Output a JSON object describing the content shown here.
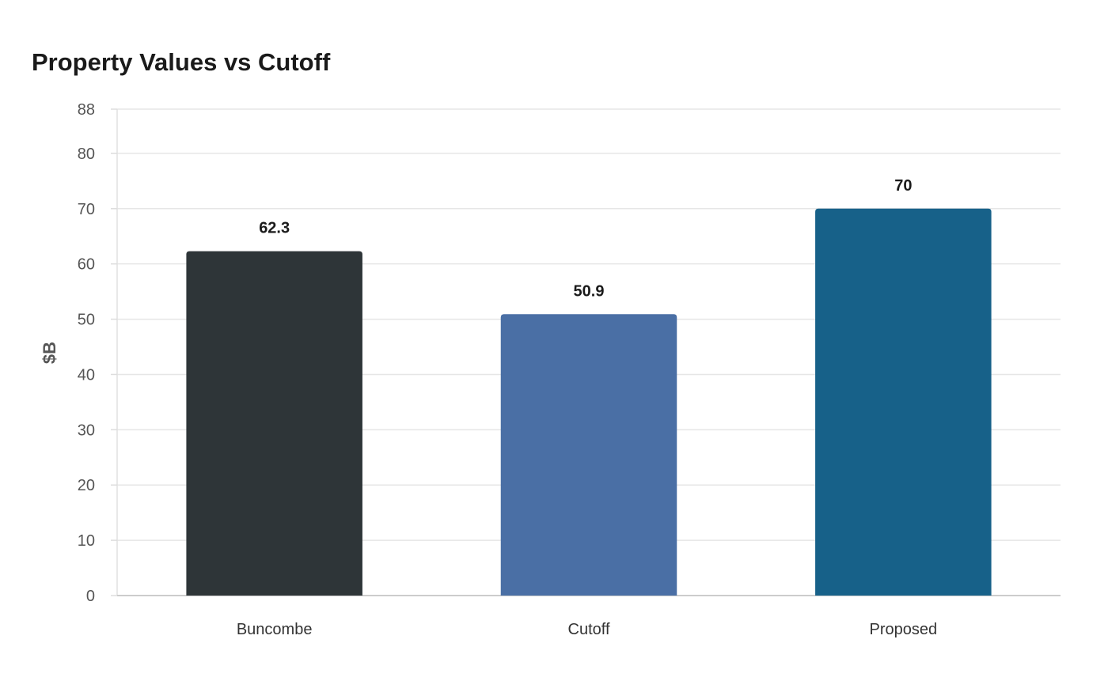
{
  "chart_data": {
    "type": "bar",
    "title": "Property Values vs Cutoff",
    "xlabel": "",
    "ylabel": "$B",
    "categories": [
      "Buncombe",
      "Cutoff",
      "Proposed"
    ],
    "values": [
      62.3,
      50.9,
      70
    ],
    "data_labels": [
      "62.3",
      "50.9",
      "70"
    ],
    "colors": [
      "#2e3538",
      "#4a6fa5",
      "#176189"
    ],
    "ylim": [
      0,
      88
    ],
    "yticks": [
      0,
      10,
      20,
      30,
      40,
      50,
      60,
      70,
      80,
      88
    ],
    "grid": true,
    "legend": "none"
  }
}
